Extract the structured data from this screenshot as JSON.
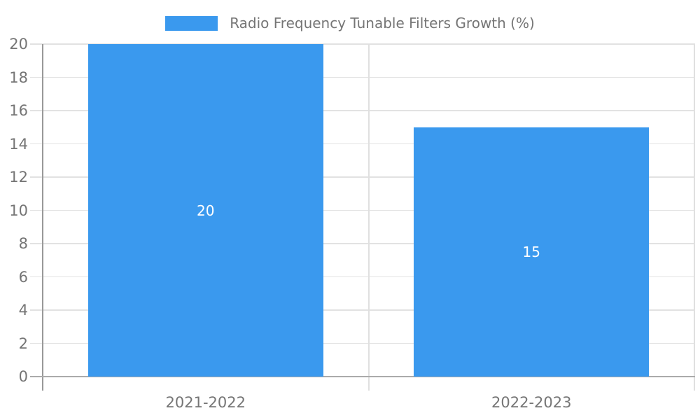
{
  "chart_data": {
    "type": "bar",
    "title": "Radio Frequency Tunable Filters Growth (%)",
    "categories": [
      "2021-2022",
      "2022-2023"
    ],
    "values": [
      20,
      15
    ],
    "bar_value_labels": [
      "20",
      "15"
    ],
    "xlabel": "",
    "ylabel": "",
    "ylim": [
      0,
      20
    ],
    "ytick_step": 2,
    "ytick_labels": [
      "0",
      "2",
      "4",
      "6",
      "8",
      "10",
      "12",
      "14",
      "16",
      "18",
      "20"
    ],
    "grid": "horizontal-on",
    "legend_position": "top-center",
    "colors": {
      "bar_fill": "#3A99EE",
      "axis_text": "#757575",
      "value_label_text": "#ffffff",
      "gridline": "#e2e2e2",
      "axis_line": "#999999",
      "baseline": "#ababab",
      "background": "#ffffff"
    }
  }
}
